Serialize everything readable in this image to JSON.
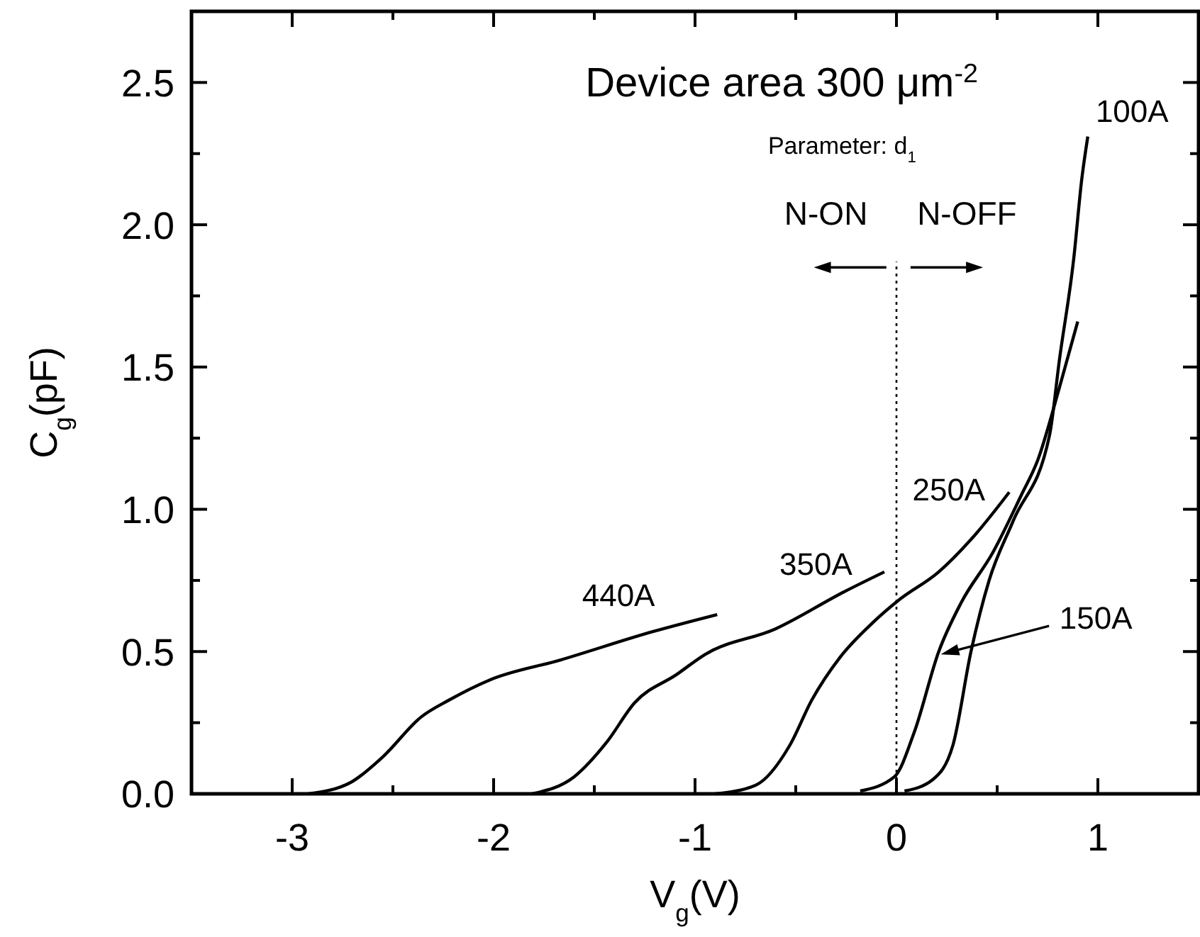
{
  "chart_data": {
    "type": "line",
    "xlabel": "V$_{g}$(V)",
    "ylabel": "C$_{g}$(pF)",
    "xlim": [
      -3.5,
      1.5
    ],
    "ylim": [
      0,
      2.75
    ],
    "xticks": [
      {
        "value": -3.5,
        "label": null
      },
      -3,
      {
        "value": -2.5,
        "label": null
      },
      -2,
      {
        "value": -1.5,
        "label": null
      },
      -1,
      {
        "value": -0.5,
        "label": null
      },
      0,
      {
        "value": 0.5,
        "label": null
      },
      1
    ],
    "yticks": [
      {
        "value": 0,
        "label": "0.0"
      },
      {
        "value": 0.25,
        "label": null
      },
      0.5,
      {
        "value": 0.75,
        "label": null
      },
      {
        "value": 1,
        "label": "1.0"
      },
      {
        "value": 1.25,
        "label": null
      },
      1.5,
      {
        "value": 1.75,
        "label": null
      },
      {
        "value": 2,
        "label": "2.0"
      },
      {
        "value": 2.25,
        "label": null
      },
      2.5
    ],
    "grid": false,
    "marker": "none",
    "line_style": "solid",
    "series": [
      {
        "name": "440A",
        "color": "#000000",
        "x": [
          -2.92,
          -2.71,
          -2.55,
          -2.36,
          -2.22,
          -2.02,
          -1.67,
          -1.21,
          -0.89
        ],
        "values": [
          0,
          0.04,
          0.13,
          0.27,
          0.33,
          0.4,
          0.47,
          0.57,
          0.63
        ]
      },
      {
        "name": "350A",
        "color": "#000000",
        "x": [
          -1.81,
          -1.6,
          -1.44,
          -1.3,
          -1.09,
          -0.95,
          -0.6,
          -0.26,
          -0.06
        ],
        "values": [
          0,
          0.06,
          0.18,
          0.32,
          0.42,
          0.49,
          0.58,
          0.71,
          0.78
        ]
      },
      {
        "name": "250A",
        "color": "#000000",
        "x": [
          -0.9,
          -0.7,
          -0.53,
          -0.42,
          -0.28,
          -0.12,
          0.01,
          0.21,
          0.39,
          0.56
        ],
        "values": [
          0,
          0.03,
          0.17,
          0.33,
          0.48,
          0.6,
          0.68,
          0.78,
          0.91,
          1.06
        ]
      },
      {
        "name": "150A",
        "color": "#000000",
        "x": [
          -0.18,
          -0.01,
          0.09,
          0.21,
          0.32,
          0.48,
          0.62,
          0.7,
          0.81,
          0.9
        ],
        "values": [
          0.01,
          0.06,
          0.22,
          0.5,
          0.67,
          0.85,
          1.05,
          1.17,
          1.43,
          1.66
        ]
      },
      {
        "name": "100A",
        "color": "#000000",
        "x": [
          0.04,
          0.18,
          0.28,
          0.37,
          0.46,
          0.58,
          0.76,
          0.81,
          0.88,
          0.92,
          0.95
        ],
        "values": [
          0.01,
          0.05,
          0.17,
          0.5,
          0.75,
          0.96,
          1.26,
          1.53,
          1.88,
          2.16,
          2.31
        ]
      }
    ],
    "ref_lines": [
      {
        "axis": "x",
        "value": 0,
        "line_style": "dotted",
        "color": "#000000"
      }
    ],
    "annotations": [
      "Device area 300 μm$^{-2}$",
      "Parameter: d$_{1}$",
      "N-ON",
      "N-OFF"
    ]
  }
}
